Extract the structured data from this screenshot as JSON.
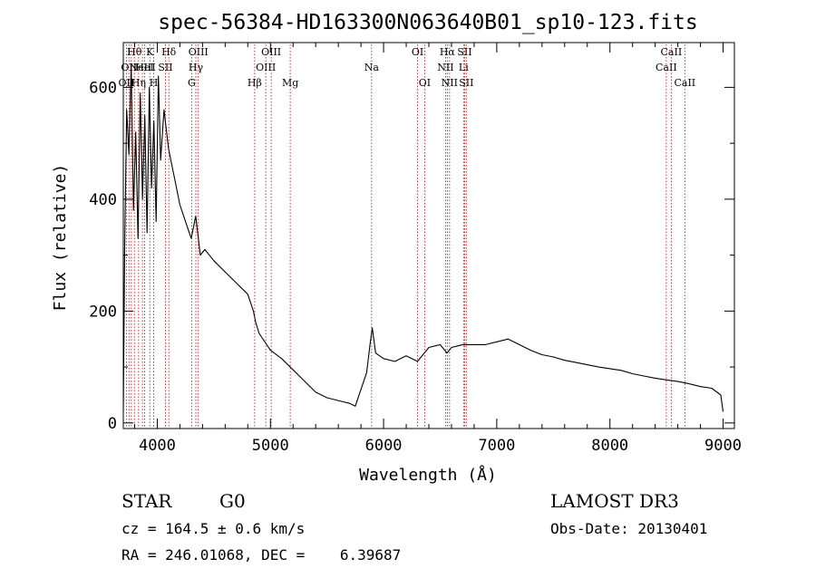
{
  "chart_data": {
    "type": "line",
    "title": "spec-56384-HD163300N063640B01_sp10-123.fits",
    "xlabel": "Wavelength (Å)",
    "ylabel": "Flux (relative)",
    "xlim": [
      3700,
      9100
    ],
    "ylim": [
      -10,
      680
    ],
    "x_ticks": [
      4000,
      5000,
      6000,
      7000,
      8000,
      9000
    ],
    "x_tick_labels": [
      "4000",
      "5000",
      "6000",
      "7000",
      "8000",
      "9000"
    ],
    "y_ticks": [
      0,
      200,
      400,
      600
    ],
    "y_tick_labels": [
      "0",
      "200",
      "400",
      "600"
    ],
    "grid": false,
    "series": [
      {
        "color": "#000000",
        "x": [
          3700,
          3712,
          3730,
          3750,
          3770,
          3790,
          3810,
          3830,
          3850,
          3870,
          3890,
          3910,
          3930,
          3950,
          3970,
          3990,
          4010,
          4030,
          4060,
          4100,
          4150,
          4200,
          4250,
          4300,
          4340,
          4380,
          4420,
          4500,
          4600,
          4700,
          4800,
          4850,
          4870,
          4900,
          5000,
          5100,
          5200,
          5300,
          5400,
          5500,
          5600,
          5700,
          5750,
          5800,
          5850,
          5880,
          5900,
          5930,
          6000,
          6100,
          6200,
          6300,
          6400,
          6500,
          6560,
          6600,
          6700,
          6800,
          6900,
          7000,
          7100,
          7200,
          7300,
          7400,
          7500,
          7600,
          7700,
          7800,
          7900,
          8000,
          8100,
          8200,
          8300,
          8400,
          8500,
          8600,
          8700,
          8800,
          8900,
          8980,
          9000
        ],
        "y": [
          20,
          310,
          560,
          480,
          640,
          380,
          520,
          330,
          590,
          400,
          550,
          340,
          600,
          420,
          540,
          360,
          620,
          470,
          560,
          490,
          440,
          390,
          360,
          330,
          370,
          300,
          310,
          290,
          270,
          250,
          230,
          200,
          180,
          160,
          130,
          115,
          95,
          75,
          55,
          45,
          40,
          35,
          30,
          60,
          90,
          140,
          170,
          125,
          115,
          110,
          120,
          110,
          135,
          140,
          125,
          135,
          140,
          140,
          140,
          145,
          150,
          140,
          130,
          122,
          118,
          112,
          108,
          104,
          100,
          97,
          94,
          88,
          84,
          80,
          77,
          74,
          70,
          65,
          62,
          50,
          20
        ]
      }
    ],
    "lines": [
      {
        "wavelength": 3727,
        "label": "OII",
        "row": 3
      },
      {
        "wavelength": 3750,
        "label": "OII",
        "row": 2
      },
      {
        "wavelength": 3771,
        "label": "H",
        "row": 1
      },
      {
        "wavelength": 3798,
        "label": "Hθ",
        "row": 1
      },
      {
        "wavelength": 3835,
        "label": "Hη",
        "row": 3
      },
      {
        "wavelength": 3869,
        "label": "NeIII",
        "row": 2
      },
      {
        "wavelength": 3889,
        "label": "HeI",
        "row": 2
      },
      {
        "wavelength": 3934,
        "label": "K",
        "row": 1
      },
      {
        "wavelength": 3969,
        "label": "H",
        "row": 3
      },
      {
        "wavelength": 4072,
        "label": "SII",
        "row": 2
      },
      {
        "wavelength": 4102,
        "label": "Hδ",
        "row": 1
      },
      {
        "wavelength": 4304,
        "label": "G",
        "row": 3
      },
      {
        "wavelength": 4341,
        "label": "Hγ",
        "row": 2
      },
      {
        "wavelength": 4363,
        "label": "OIII",
        "row": 1
      },
      {
        "wavelength": 4861,
        "label": "Hβ",
        "row": 3
      },
      {
        "wavelength": 4959,
        "label": "OIII",
        "row": 2
      },
      {
        "wavelength": 5007,
        "label": "OIII",
        "row": 1
      },
      {
        "wavelength": 5175,
        "label": "Mg",
        "row": 3
      },
      {
        "wavelength": 5894,
        "label": "Na",
        "row": 2
      },
      {
        "wavelength": 6300,
        "label": "OI",
        "row": 1
      },
      {
        "wavelength": 6363,
        "label": "OI",
        "row": 3
      },
      {
        "wavelength": 6548,
        "label": "NII",
        "row": 2
      },
      {
        "wavelength": 6563,
        "label": "Hα",
        "row": 1
      },
      {
        "wavelength": 6583,
        "label": "NII",
        "row": 3
      },
      {
        "wavelength": 6707,
        "label": "Li",
        "row": 2
      },
      {
        "wavelength": 6716,
        "label": "SII",
        "row": 1
      },
      {
        "wavelength": 6731,
        "label": "SII",
        "row": 3
      },
      {
        "wavelength": 8498,
        "label": "CaII",
        "row": 2
      },
      {
        "wavelength": 8542,
        "label": "CaII",
        "row": 1
      },
      {
        "wavelength": 8662,
        "label": "CaII",
        "row": 3
      }
    ],
    "line_color": "#cc0000"
  },
  "info": {
    "class": "STAR",
    "subclass": "G0",
    "survey": "LAMOST DR3",
    "cz": "cz = 164.5 ± 0.6 km/s",
    "obs_date": "Obs-Date: 20130401",
    "coords": "RA = 246.01068, DEC =    6.39687"
  }
}
